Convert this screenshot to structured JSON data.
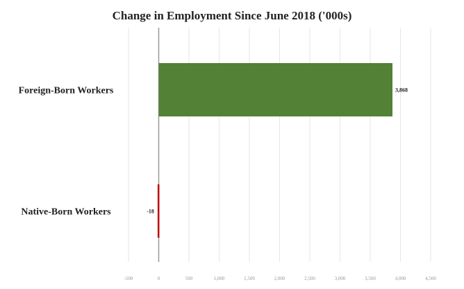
{
  "chart_data": {
    "type": "bar",
    "orientation": "horizontal",
    "title": "Change in Employment Since June 2018 ('000s)",
    "categories": [
      "Foreign-Born Workers",
      "Native-Born Workers"
    ],
    "values": [
      3868,
      -18
    ],
    "data_labels": [
      "3,868",
      "-18"
    ],
    "colors": [
      "#538135",
      "#c00000"
    ],
    "xlim": [
      -500,
      4500
    ],
    "xticks": [
      -500,
      0,
      500,
      1000,
      1500,
      2000,
      2500,
      3000,
      3500,
      4000,
      4500
    ],
    "xtick_labels": [
      "-500",
      "0",
      "500",
      "1,000",
      "1,500",
      "2,000",
      "2,500",
      "3,000",
      "3,500",
      "4,000",
      "4,500"
    ],
    "grid": "vertical",
    "legend": "none"
  }
}
